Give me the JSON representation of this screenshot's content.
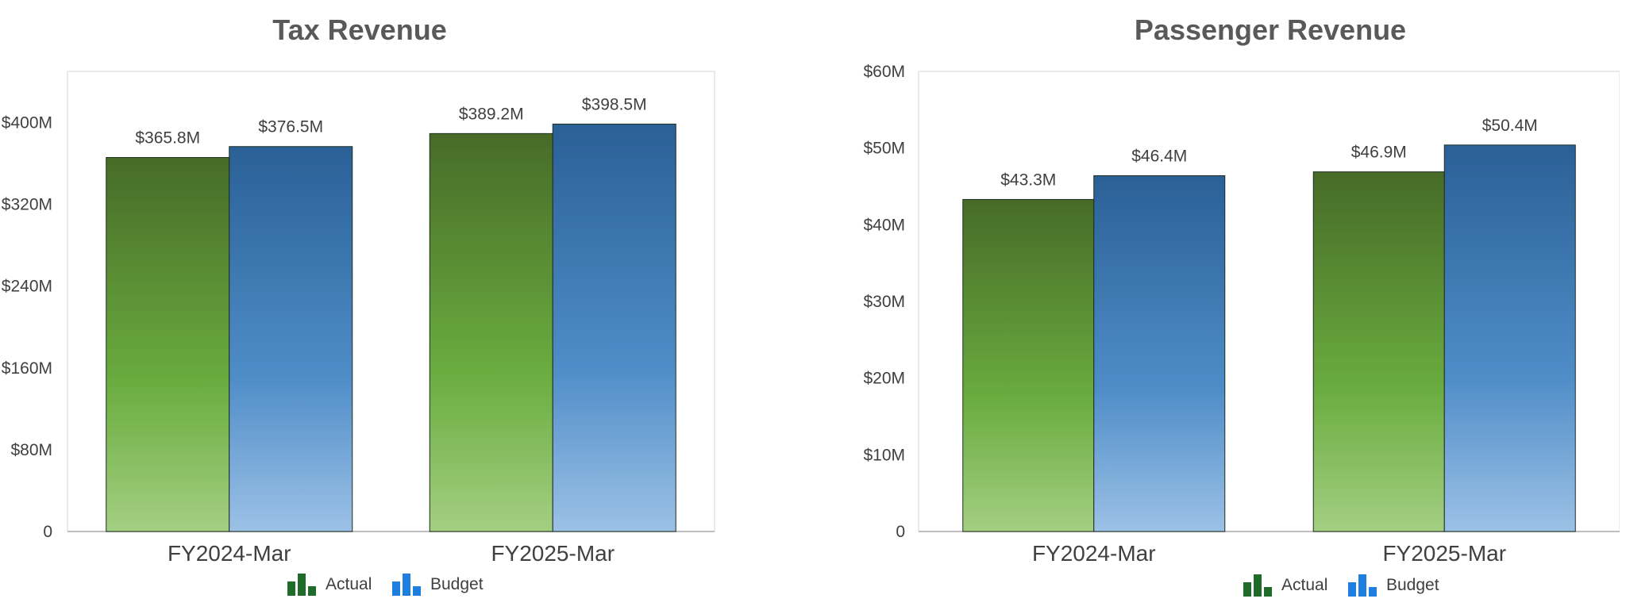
{
  "colors": {
    "actual_dark": "#476b28",
    "actual_mid": "#6aac3f",
    "actual_light": "#a3cf82",
    "budget_dark": "#2a6096",
    "budget_mid": "#4f8dc8",
    "budget_light": "#9cc1e6",
    "legend_actual": "#1e6b2a",
    "legend_budget": "#1e7fe0"
  },
  "legend_icons": {
    "actual": "bar-chart-icon-green",
    "budget": "bar-chart-icon-blue"
  },
  "chart_data": [
    {
      "type": "bar",
      "title": "Tax Revenue",
      "categories": [
        "FY2024-Mar",
        "FY2025-Mar"
      ],
      "series": [
        {
          "name": "Actual",
          "values": [
            365.8,
            389.2
          ],
          "labels": [
            "$365.8M",
            "$389.2M"
          ]
        },
        {
          "name": "Budget",
          "values": [
            376.5,
            398.5
          ],
          "labels": [
            "$376.5M",
            "$398.5M"
          ]
        }
      ],
      "ylim": [
        0,
        450
      ],
      "yticks": [
        0,
        80,
        160,
        240,
        320,
        400
      ],
      "ytick_labels": [
        "0",
        "$80M",
        "$160M",
        "$240M",
        "$320M",
        "$400M"
      ],
      "xlabel": "",
      "ylabel": "",
      "legend": [
        "Actual",
        "Budget"
      ],
      "legend_position": "bottom"
    },
    {
      "type": "bar",
      "title": "Passenger Revenue",
      "categories": [
        "FY2024-Mar",
        "FY2025-Mar"
      ],
      "series": [
        {
          "name": "Actual",
          "values": [
            43.3,
            46.9
          ],
          "labels": [
            "$43.3M",
            "$46.9M"
          ]
        },
        {
          "name": "Budget",
          "values": [
            46.4,
            50.4
          ],
          "labels": [
            "$46.4M",
            "$50.4M"
          ]
        }
      ],
      "ylim": [
        0,
        60
      ],
      "yticks": [
        0,
        10,
        20,
        30,
        40,
        50,
        60
      ],
      "ytick_labels": [
        "0",
        "$10M",
        "$20M",
        "$30M",
        "$40M",
        "$50M",
        "$60M"
      ],
      "xlabel": "",
      "ylabel": "",
      "legend": [
        "Actual",
        "Budget"
      ],
      "legend_position": "bottom"
    }
  ]
}
